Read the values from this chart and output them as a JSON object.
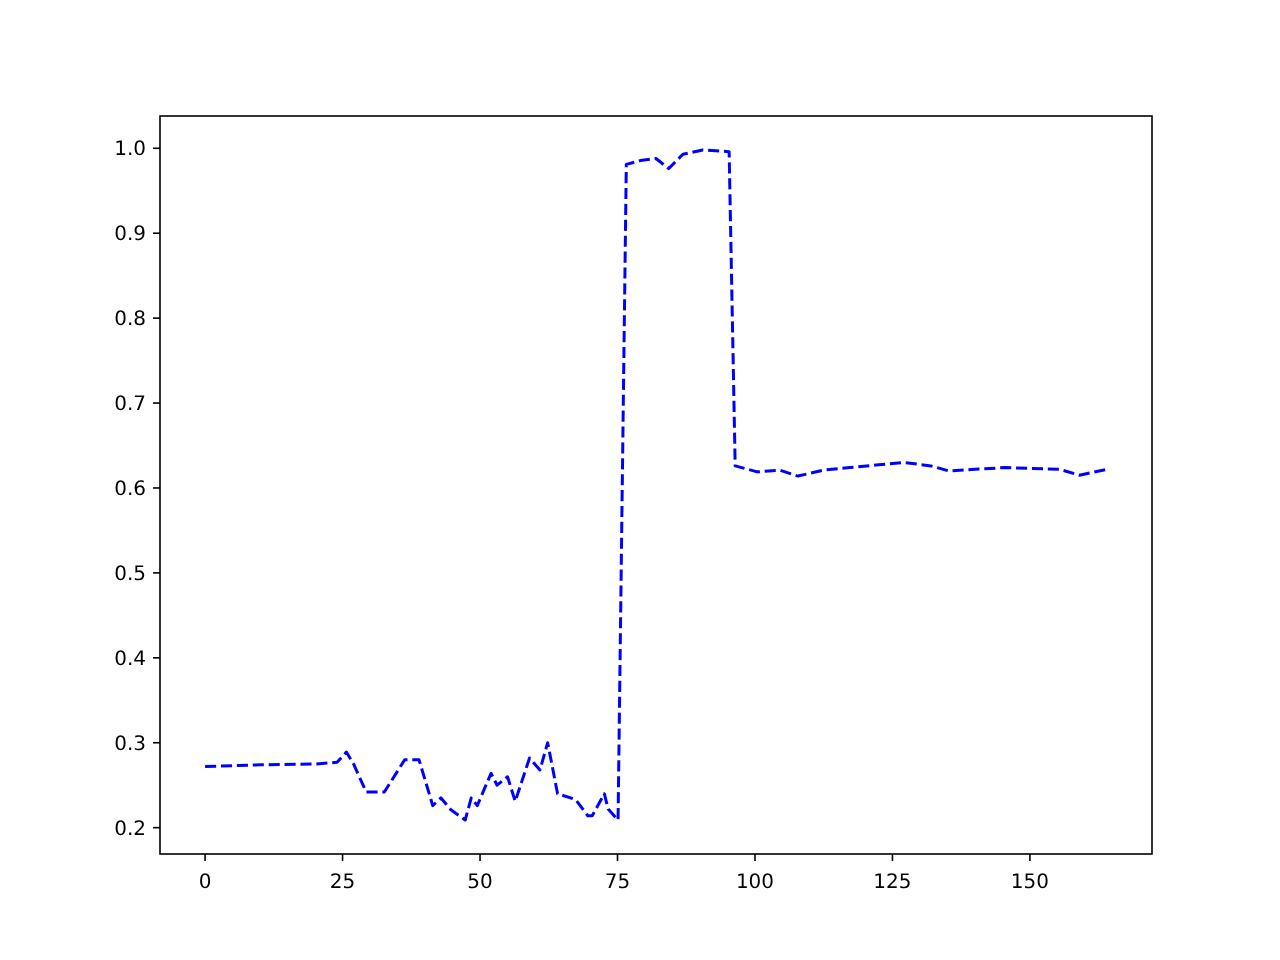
{
  "chart_data": {
    "type": "line",
    "line_style": "dashed",
    "marker": "none",
    "grid": false,
    "xlim": [
      -8.2,
      172.2
    ],
    "ylim": [
      0.169,
      1.038
    ],
    "xticks": [
      0,
      25,
      50,
      75,
      100,
      125,
      150
    ],
    "yticks": [
      0.2,
      0.3,
      0.4,
      0.5,
      0.6,
      0.7,
      0.8,
      0.9,
      {
        "value": 1,
        "label": "1.0"
      }
    ],
    "series": [
      {
        "color": "#0000ff",
        "x": [
          0,
          10,
          20,
          24,
          25.7,
          27,
          29.3,
          32.6,
          36.3,
          38.9,
          41.4,
          42.9,
          44.7,
          47.3,
          48.4,
          49.5,
          52,
          53.1,
          55,
          56.4,
          59,
          60.9,
          62.3,
          64.1,
          67.4,
          69.6,
          70.4,
          72.6,
          73.3,
          75.1,
          76.6,
          79.5,
          82,
          84.3,
          86.9,
          90.5,
          95.3,
          96.4,
          100.4,
          104.5,
          107.8,
          112.5,
          117.3,
          122,
          127.2,
          132,
          135.3,
          140,
          145.5,
          150,
          155.4,
          159,
          164
        ],
        "values": [
          0.272,
          0.274,
          0.275,
          0.277,
          0.289,
          0.275,
          0.242,
          0.242,
          0.28,
          0.28,
          0.226,
          0.235,
          0.221,
          0.209,
          0.235,
          0.226,
          0.264,
          0.25,
          0.26,
          0.231,
          0.282,
          0.268,
          0.3,
          0.24,
          0.233,
          0.214,
          0.214,
          0.24,
          0.222,
          0.209,
          0.981,
          0.986,
          0.988,
          0.976,
          0.993,
          0.998,
          0.996,
          0.626,
          0.619,
          0.621,
          0.614,
          0.621,
          0.624,
          0.627,
          0.63,
          0.626,
          0.62,
          0.622,
          0.624,
          0.623,
          0.622,
          0.615,
          0.622
        ]
      }
    ]
  }
}
